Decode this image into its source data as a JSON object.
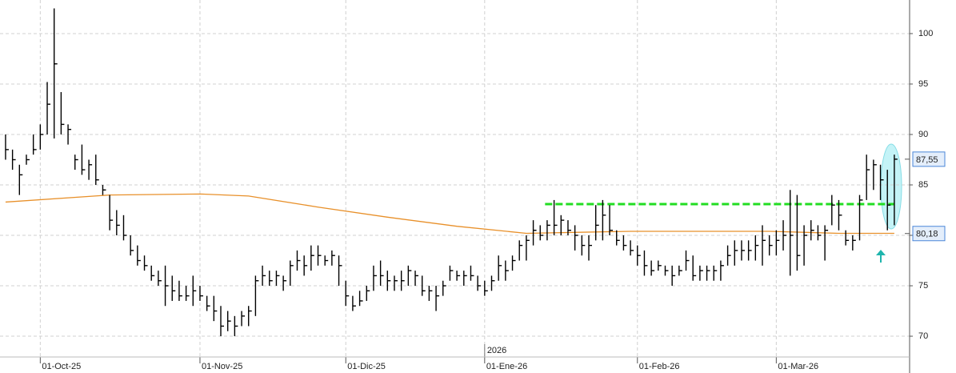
{
  "chart_data": {
    "type": "ohlc",
    "high": [
      90,
      88.5,
      87,
      88,
      90,
      91,
      95.2,
      102.5,
      94.2,
      91,
      88,
      89,
      87.5,
      88,
      85,
      84,
      82.5,
      82,
      80,
      79,
      78,
      77,
      76.5,
      77,
      76,
      75.5,
      75,
      76,
      75,
      74,
      74,
      73,
      72.5,
      72,
      72.5,
      73,
      76,
      77,
      76.5,
      76.5,
      76,
      77.5,
      78.5,
      78,
      79,
      79,
      78,
      78.5,
      78,
      75.5,
      74,
      74.5,
      75,
      77,
      77.5,
      76.5,
      76,
      76.5,
      77,
      76.5,
      76,
      75,
      75,
      75.5,
      77,
      76.5,
      76.5,
      77,
      76,
      75.5,
      76,
      78,
      77.5,
      78,
      79.5,
      80,
      81.5,
      81,
      81.5,
      83.5,
      82,
      81.5,
      81,
      80,
      80,
      83,
      83.5,
      83,
      80.5,
      80,
      79.5,
      79,
      78.5,
      77.5,
      77.5,
      77,
      77,
      77,
      78.5,
      78,
      77,
      77,
      77,
      77.5,
      79,
      79.5,
      79.5,
      79.5,
      80,
      81,
      80,
      80.5,
      81.5,
      84.5,
      84,
      81,
      81.5,
      81,
      81,
      84,
      83.5,
      80.5,
      80,
      84,
      88,
      87.5,
      87,
      86.5,
      88
    ],
    "low": [
      87.5,
      86.5,
      84,
      87,
      88,
      88.5,
      90,
      89.6,
      90,
      89,
      86.5,
      86,
      85.5,
      85,
      84,
      80.5,
      80,
      79.5,
      78,
      77,
      76.5,
      75.5,
      75,
      73,
      73.5,
      73.5,
      73.5,
      73,
      73.5,
      72.5,
      71.5,
      70,
      70.5,
      70,
      71,
      71,
      72,
      75,
      75,
      75,
      74.5,
      75,
      76.5,
      76,
      76.5,
      77,
      77,
      77,
      75,
      73,
      72.5,
      73,
      73.5,
      74.5,
      75,
      74.5,
      74.5,
      74.5,
      75,
      75,
      74,
      73.5,
      72.5,
      74,
      75.5,
      75.5,
      75,
      75.5,
      74.5,
      74,
      74.5,
      75.5,
      75.5,
      76.5,
      77.5,
      77.5,
      79,
      79.5,
      79.5,
      80,
      80,
      80,
      78.5,
      78,
      77.5,
      79.5,
      79.5,
      80,
      79,
      78.5,
      78,
      77,
      76,
      76,
      76.5,
      76,
      75,
      76,
      76.5,
      75.5,
      75.5,
      75.5,
      75.5,
      75.5,
      77,
      77,
      77.5,
      77.5,
      77.5,
      77,
      78,
      78,
      78.5,
      76,
      76.5,
      77,
      79.5,
      79.5,
      77.5,
      81,
      80.5,
      79,
      78.5,
      79.5,
      83.5,
      84.5,
      83.5,
      80.5,
      81
    ],
    "close": [
      88.5,
      87.5,
      86,
      87.5,
      88.5,
      90,
      93,
      97,
      91,
      90.5,
      87.5,
      86.5,
      87,
      85.5,
      84.5,
      81.5,
      81,
      80,
      78.5,
      77.5,
      77,
      76,
      75.5,
      75,
      74.5,
      74,
      74,
      74.5,
      74,
      73,
      72.5,
      71,
      71.5,
      71,
      72,
      72.5,
      75.5,
      76,
      75.5,
      76,
      75.5,
      77,
      77.5,
      77,
      78,
      78,
      77.5,
      78,
      77,
      74,
      73,
      73.5,
      74.5,
      76,
      76,
      75.5,
      75.5,
      75.5,
      76.5,
      76,
      74.5,
      74.5,
      74,
      75,
      76.5,
      76,
      76,
      76,
      75,
      74.5,
      75.5,
      77,
      76.5,
      77.5,
      79,
      79.5,
      80.5,
      80,
      81,
      81,
      81.5,
      80.5,
      80,
      79,
      79,
      81,
      82,
      80.5,
      79.5,
      79,
      78.5,
      78,
      77,
      76.5,
      77,
      76.5,
      76,
      76.5,
      77.5,
      76,
      76.5,
      76.5,
      76.5,
      77,
      78,
      78.5,
      78.5,
      78.5,
      79,
      79.5,
      79,
      79.5,
      80,
      80,
      78,
      80,
      80.5,
      80,
      80.5,
      83,
      82,
      79.5,
      79.5,
      83.5,
      86.5,
      87,
      85.5,
      83,
      87.55
    ],
    "color": "#000000",
    "moving_average": {
      "color": "#e8902a",
      "x": [
        0,
        15,
        28,
        35,
        45,
        55,
        65,
        75,
        90,
        110,
        120,
        128
      ],
      "values": [
        83.3,
        84,
        84.1,
        83.9,
        82.8,
        81.8,
        80.9,
        80.2,
        80.4,
        80.4,
        80.2,
        80.2
      ]
    },
    "support": {
      "color": "#22dd22",
      "value": 83.1,
      "x": [
        77.7,
        128
      ]
    },
    "last_price": {
      "value": 87.55,
      "label": "87,55"
    },
    "average_last": {
      "value": 80.18,
      "label": "80,18"
    },
    "xlim": [
      -0.8,
      130.2
    ],
    "xticks": [
      {
        "value": 5,
        "label": "01-Oct-25"
      },
      {
        "value": 28,
        "label": "01-Nov-25"
      },
      {
        "value": 49,
        "label": "01-Dic-25"
      },
      {
        "value": 69,
        "label": "01-Ene-26"
      },
      {
        "value": 91,
        "label": "01-Feb-26"
      },
      {
        "value": 111,
        "label": "01-Mar-26"
      }
    ],
    "year_marker": {
      "x": 69,
      "text": "2026"
    },
    "ylim": [
      67.94,
      103.33
    ],
    "yticks": [
      70,
      75,
      80,
      85,
      90,
      95,
      100
    ],
    "grid": true
  }
}
